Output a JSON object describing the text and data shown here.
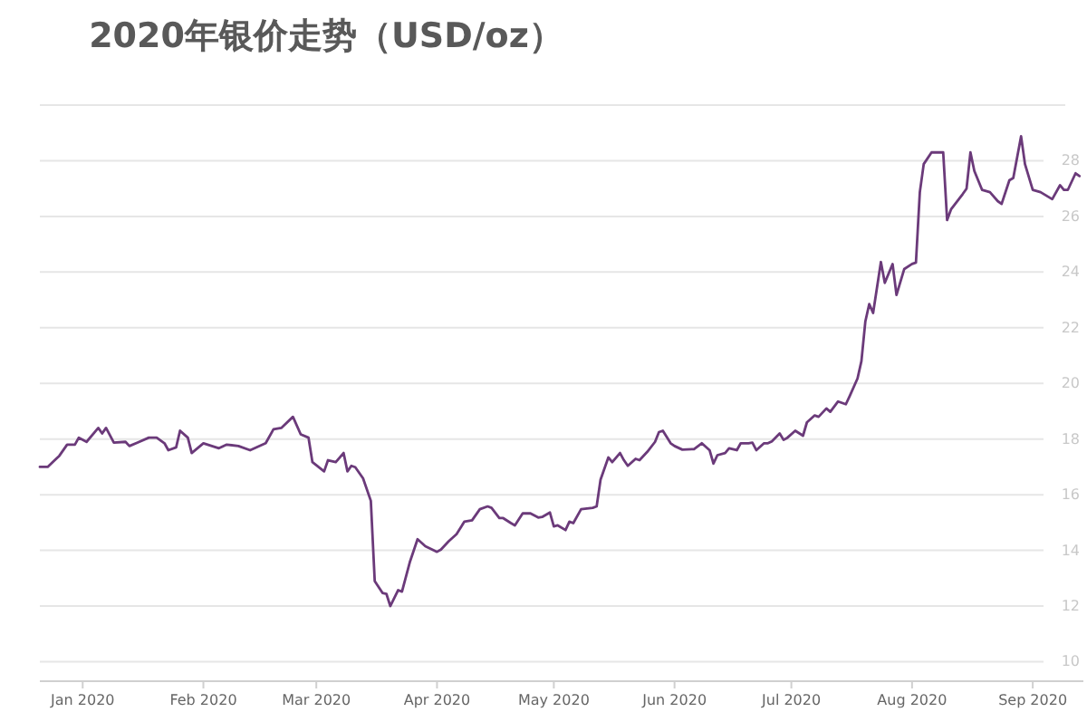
{
  "chart_data": {
    "type": "line",
    "title": "2020年银价走势（USD/oz）",
    "x": [
      "2019-12-21",
      "2019-12-23",
      "2019-12-26",
      "2019-12-28",
      "2019-12-30",
      "2019-12-31",
      "2020-01-02",
      "2020-01-05",
      "2020-01-06",
      "2020-01-07",
      "2020-01-09",
      "2020-01-12",
      "2020-01-13",
      "2020-01-15",
      "2020-01-18",
      "2020-01-20",
      "2020-01-22",
      "2020-01-23",
      "2020-01-25",
      "2020-01-26",
      "2020-01-28",
      "2020-01-29",
      "2020-02-01",
      "2020-02-05",
      "2020-02-07",
      "2020-02-10",
      "2020-02-13",
      "2020-02-17",
      "2020-02-19",
      "2020-02-21",
      "2020-02-24",
      "2020-02-26",
      "2020-02-28",
      "2020-02-29",
      "2020-03-03",
      "2020-03-04",
      "2020-03-06",
      "2020-03-08",
      "2020-03-09",
      "2020-03-10",
      "2020-03-11",
      "2020-03-13",
      "2020-03-15",
      "2020-03-16",
      "2020-03-18",
      "2020-03-19",
      "2020-03-20",
      "2020-03-22",
      "2020-03-23",
      "2020-03-25",
      "2020-03-27",
      "2020-03-29",
      "2020-04-01",
      "2020-04-02",
      "2020-04-04",
      "2020-04-06",
      "2020-04-08",
      "2020-04-10",
      "2020-04-12",
      "2020-04-14",
      "2020-04-15",
      "2020-04-17",
      "2020-04-18",
      "2020-04-20",
      "2020-04-21",
      "2020-04-23",
      "2020-04-25",
      "2020-04-27",
      "2020-04-28",
      "2020-04-30",
      "2020-05-01",
      "2020-05-02",
      "2020-05-04",
      "2020-05-05",
      "2020-05-06",
      "2020-05-08",
      "2020-05-11",
      "2020-05-12",
      "2020-05-13",
      "2020-05-15",
      "2020-05-16",
      "2020-05-18",
      "2020-05-19",
      "2020-05-20",
      "2020-05-22",
      "2020-05-23",
      "2020-05-25",
      "2020-05-27",
      "2020-05-28",
      "2020-05-29",
      "2020-05-31",
      "2020-06-01",
      "2020-06-03",
      "2020-06-06",
      "2020-06-08",
      "2020-06-10",
      "2020-06-11",
      "2020-06-12",
      "2020-06-14",
      "2020-06-15",
      "2020-06-17",
      "2020-06-18",
      "2020-06-20",
      "2020-06-21",
      "2020-06-22",
      "2020-06-24",
      "2020-06-25",
      "2020-06-26",
      "2020-06-28",
      "2020-06-29",
      "2020-06-30",
      "2020-07-02",
      "2020-07-04",
      "2020-07-05",
      "2020-07-07",
      "2020-07-08",
      "2020-07-10",
      "2020-07-11",
      "2020-07-13",
      "2020-07-15",
      "2020-07-16",
      "2020-07-18",
      "2020-07-19",
      "2020-07-20",
      "2020-07-21",
      "2020-07-22",
      "2020-07-24",
      "2020-07-25",
      "2020-07-27",
      "2020-07-28",
      "2020-07-30",
      "2020-08-01",
      "2020-08-02",
      "2020-08-03",
      "2020-08-04",
      "2020-08-06",
      "2020-08-08",
      "2020-08-09",
      "2020-08-10",
      "2020-08-11",
      "2020-08-14",
      "2020-08-15",
      "2020-08-16",
      "2020-08-17",
      "2020-08-19",
      "2020-08-21",
      "2020-08-23",
      "2020-08-24",
      "2020-08-26",
      "2020-08-27",
      "2020-08-29",
      "2020-08-30",
      "2020-09-01",
      "2020-09-03",
      "2020-09-06",
      "2020-09-08",
      "2020-09-09",
      "2020-09-10",
      "2020-09-12",
      "2020-09-13"
    ],
    "series": [
      {
        "color": "#6b3a7a",
        "values": [
          17.0,
          17.0,
          17.4,
          17.8,
          17.8,
          18.05,
          17.9,
          18.4,
          18.2,
          18.4,
          17.87,
          17.9,
          17.75,
          17.87,
          18.05,
          18.05,
          17.85,
          17.6,
          17.7,
          18.3,
          18.05,
          17.5,
          17.85,
          17.67,
          17.8,
          17.75,
          17.6,
          17.85,
          18.35,
          18.4,
          18.8,
          18.17,
          18.05,
          17.17,
          16.84,
          17.24,
          17.17,
          17.5,
          16.84,
          17.04,
          16.99,
          16.59,
          15.78,
          12.9,
          12.47,
          12.44,
          12.0,
          12.57,
          12.52,
          13.57,
          14.4,
          14.15,
          13.95,
          14.03,
          14.33,
          14.58,
          15.03,
          15.08,
          15.48,
          15.58,
          15.53,
          15.16,
          15.16,
          14.98,
          14.9,
          15.33,
          15.33,
          15.18,
          15.2,
          15.36,
          14.86,
          14.9,
          14.73,
          15.03,
          14.98,
          15.48,
          15.53,
          15.58,
          16.54,
          17.34,
          17.17,
          17.5,
          17.24,
          17.04,
          17.29,
          17.24,
          17.54,
          17.9,
          18.25,
          18.3,
          17.85,
          17.75,
          17.62,
          17.64,
          17.85,
          17.6,
          17.12,
          17.42,
          17.5,
          17.67,
          17.6,
          17.85,
          17.85,
          17.87,
          17.6,
          17.85,
          17.85,
          17.92,
          18.2,
          17.97,
          18.05,
          18.3,
          18.12,
          18.6,
          18.85,
          18.8,
          19.1,
          18.98,
          19.35,
          19.25,
          19.55,
          20.18,
          20.8,
          22.22,
          22.85,
          22.53,
          24.36,
          23.61,
          24.29,
          23.18,
          24.11,
          24.29,
          24.34,
          26.87,
          27.88,
          28.3,
          28.3,
          28.3,
          25.87,
          26.25,
          26.8,
          27.0,
          28.3,
          27.63,
          26.95,
          26.87,
          26.55,
          26.45,
          27.3,
          27.38,
          28.88,
          27.88,
          26.95,
          26.87,
          26.62,
          27.12,
          26.95,
          26.95,
          27.55,
          27.45
        ]
      }
    ],
    "xlim": [
      "2019-12-21",
      "2020-09-14"
    ],
    "xticks": [
      {
        "value": "2020-01-01",
        "label": "Jan 2020"
      },
      {
        "value": "2020-02-01",
        "label": "Feb 2020"
      },
      {
        "value": "2020-03-01",
        "label": "Mar 2020"
      },
      {
        "value": "2020-04-01",
        "label": "Apr 2020"
      },
      {
        "value": "2020-05-01",
        "label": "May 2020"
      },
      {
        "value": "2020-06-01",
        "label": "Jun 2020"
      },
      {
        "value": "2020-07-01",
        "label": "Jul 2020"
      },
      {
        "value": "2020-08-01",
        "label": "Aug 2020"
      },
      {
        "value": "2020-09-01",
        "label": "Sep 2020"
      }
    ],
    "ylim": [
      9.3,
      30
    ],
    "yticks": [
      10,
      12,
      14,
      16,
      18,
      20,
      22,
      24,
      26,
      28
    ],
    "grid": "y",
    "line_style": "solid",
    "marker": "none"
  }
}
